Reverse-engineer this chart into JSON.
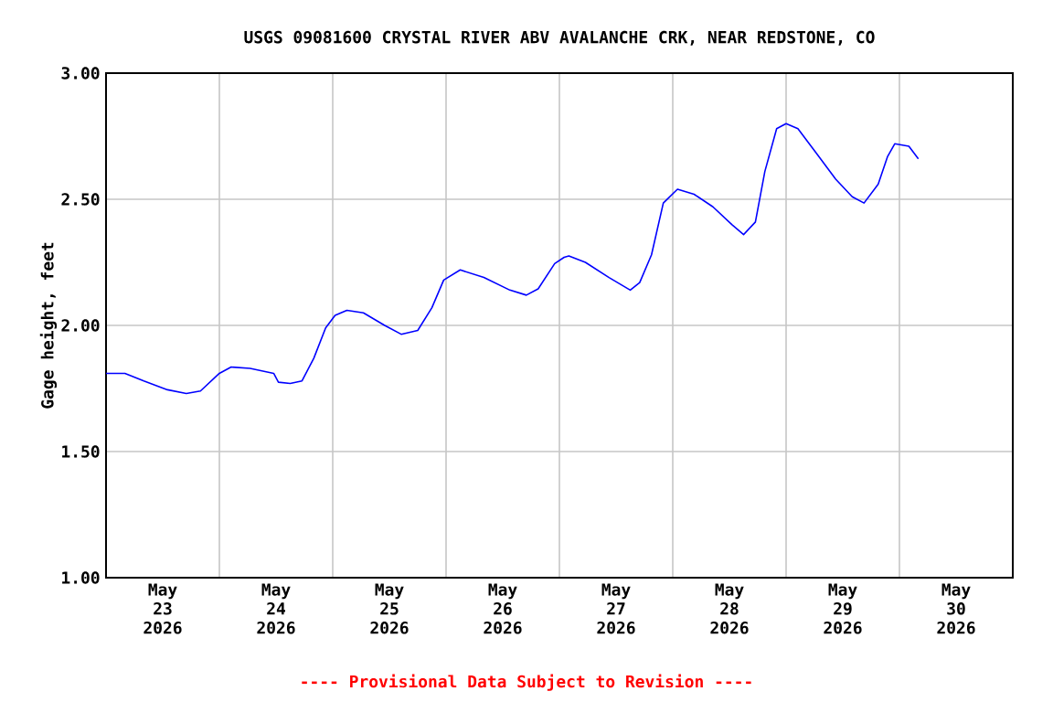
{
  "chart_data": {
    "type": "line",
    "title": "USGS 09081600 CRYSTAL RIVER ABV AVALANCHE CRK, NEAR REDSTONE, CO",
    "ylabel": "Gage height, feet",
    "annotations": [
      "---- Provisional Data Subject to Revision ----"
    ],
    "x": [
      "2026-05-23T00:00",
      "2026-05-23T04:00",
      "2026-05-23T08:00",
      "2026-05-23T13:00",
      "2026-05-23T17:00",
      "2026-05-23T20:00",
      "2026-05-24T00:00",
      "2026-05-24T02:30",
      "2026-05-24T06:30",
      "2026-05-24T11:30",
      "2026-05-24T12:30",
      "2026-05-24T15:00",
      "2026-05-24T17:30",
      "2026-05-24T20:00",
      "2026-05-24T22:30",
      "2026-05-25T00:30",
      "2026-05-25T03:00",
      "2026-05-25T06:30",
      "2026-05-25T11:00",
      "2026-05-25T14:30",
      "2026-05-25T18:00",
      "2026-05-25T21:00",
      "2026-05-25T23:30",
      "2026-05-26T03:00",
      "2026-05-26T08:00",
      "2026-05-26T13:30",
      "2026-05-26T17:00",
      "2026-05-26T19:30",
      "2026-05-26T23:00",
      "2026-05-27T01:00",
      "2026-05-27T02:00",
      "2026-05-27T05:30",
      "2026-05-27T10:30",
      "2026-05-27T15:00",
      "2026-05-27T17:00",
      "2026-05-27T19:30",
      "2026-05-27T22:00",
      "2026-05-28T01:00",
      "2026-05-28T04:30",
      "2026-05-28T08:30",
      "2026-05-28T12:30",
      "2026-05-28T15:00",
      "2026-05-28T17:30",
      "2026-05-28T19:30",
      "2026-05-28T22:00",
      "2026-05-29T00:00",
      "2026-05-29T02:30",
      "2026-05-29T06:30",
      "2026-05-29T10:30",
      "2026-05-29T14:00",
      "2026-05-29T16:30",
      "2026-05-29T19:30",
      "2026-05-29T21:30",
      "2026-05-29T23:00",
      "2026-05-30T02:00",
      "2026-05-30T04:00"
    ],
    "series": [
      {
        "color": "#0000ff",
        "values": [
          1.81,
          1.81,
          1.78,
          1.745,
          1.73,
          1.74,
          1.81,
          1.835,
          1.83,
          1.81,
          1.775,
          1.77,
          1.78,
          1.87,
          1.99,
          2.04,
          2.06,
          2.05,
          2.0,
          1.965,
          1.98,
          2.07,
          2.18,
          2.22,
          2.19,
          2.14,
          2.12,
          2.145,
          2.245,
          2.27,
          2.275,
          2.25,
          2.19,
          2.14,
          2.17,
          2.28,
          2.485,
          2.54,
          2.52,
          2.47,
          2.4,
          2.36,
          2.41,
          2.61,
          2.78,
          2.8,
          2.78,
          2.68,
          2.58,
          2.51,
          2.485,
          2.56,
          2.67,
          2.72,
          2.71,
          2.66
        ]
      }
    ],
    "xlim": [
      "2026-05-23T00:00",
      "2026-05-31T00:00"
    ],
    "xticks": [
      {
        "value": "2026-05-23T12:00",
        "label": "May 23 2026"
      },
      {
        "value": "2026-05-24T12:00",
        "label": "May 24 2026"
      },
      {
        "value": "2026-05-25T12:00",
        "label": "May 25 2026"
      },
      {
        "value": "2026-05-26T12:00",
        "label": "May 26 2026"
      },
      {
        "value": "2026-05-27T12:00",
        "label": "May 27 2026"
      },
      {
        "value": "2026-05-28T12:00",
        "label": "May 28 2026"
      },
      {
        "value": "2026-05-29T12:00",
        "label": "May 29 2026"
      },
      {
        "value": "2026-05-30T12:00",
        "label": "May 30 2026"
      },
      {
        "value": "2026-05-24T00:00",
        "label": null
      },
      {
        "value": "2026-05-25T00:00",
        "label": null
      },
      {
        "value": "2026-05-26T00:00",
        "label": null
      },
      {
        "value": "2026-05-27T00:00",
        "label": null
      },
      {
        "value": "2026-05-28T00:00",
        "label": null
      },
      {
        "value": "2026-05-29T00:00",
        "label": null
      },
      {
        "value": "2026-05-30T00:00",
        "label": null
      }
    ],
    "ylim": [
      1.0,
      3.0
    ],
    "yticks": [
      {
        "value": 1.0,
        "label": "1.00"
      },
      {
        "value": 1.5,
        "label": "1.50"
      },
      {
        "value": 2.0,
        "label": "2.00"
      },
      {
        "value": 2.5,
        "label": "2.50"
      },
      {
        "value": 3.0,
        "label": "3.00"
      }
    ],
    "grid": true,
    "line_style": "solid",
    "marker": "none"
  }
}
